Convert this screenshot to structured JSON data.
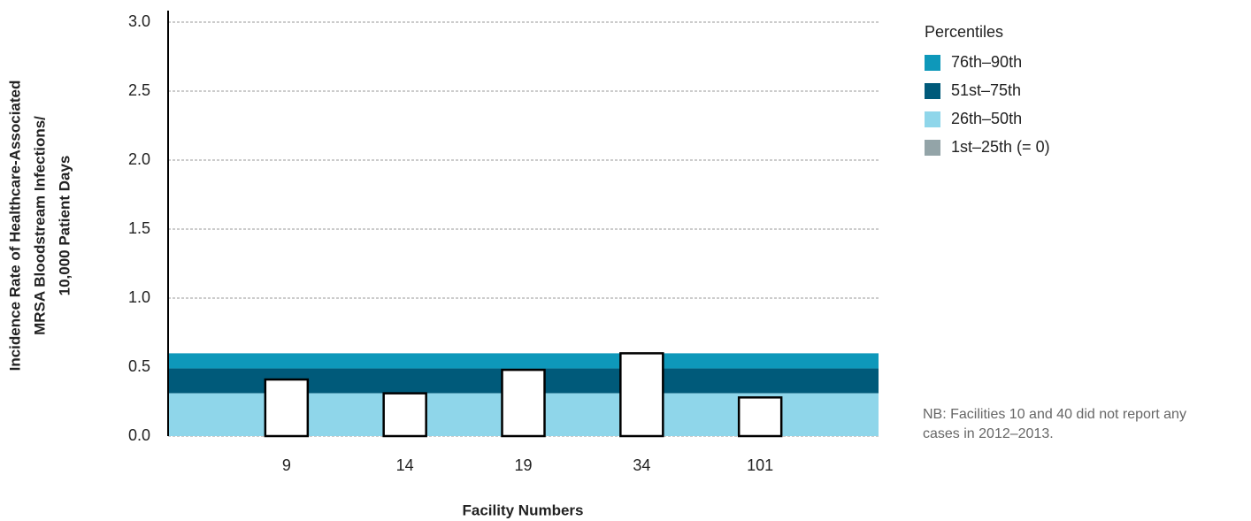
{
  "chart_data": {
    "type": "bar",
    "y_label": [
      "Incidence Rate of Healthcare-Associated",
      "MRSA Bloodstream Infections/",
      "10,000 Patient Days"
    ],
    "x_label": "Facility Numbers",
    "categories": [
      "9",
      "14",
      "19",
      "34",
      "101"
    ],
    "values": [
      0.41,
      0.31,
      0.48,
      0.6,
      0.28
    ],
    "bar_color": "#ffffff",
    "ylim": [
      0,
      3
    ],
    "yticks": [
      {
        "value": 0,
        "label": "0.0"
      },
      0.5,
      {
        "value": 1,
        "label": "1.0"
      },
      1.5,
      {
        "value": 2,
        "label": "2.0"
      },
      2.5,
      {
        "value": 3,
        "label": "3.0"
      }
    ],
    "grid": true,
    "legend_title": "Percentiles",
    "bands": [
      {
        "name": "76th–90th",
        "color": "#0e98ba",
        "upper": 0.6
      },
      {
        "name": "51st–75th",
        "color": "#005a7a",
        "upper": 0.49
      },
      {
        "name": "26th–50th",
        "color": "#8fd6ea",
        "upper": 0.31
      },
      {
        "name": "1st–25th (= 0)",
        "color": "#93a4a8",
        "upper": 0
      }
    ],
    "note": [
      "NB: Facilities 10 and 40 did not report any",
      "cases in 2012–2013."
    ]
  }
}
